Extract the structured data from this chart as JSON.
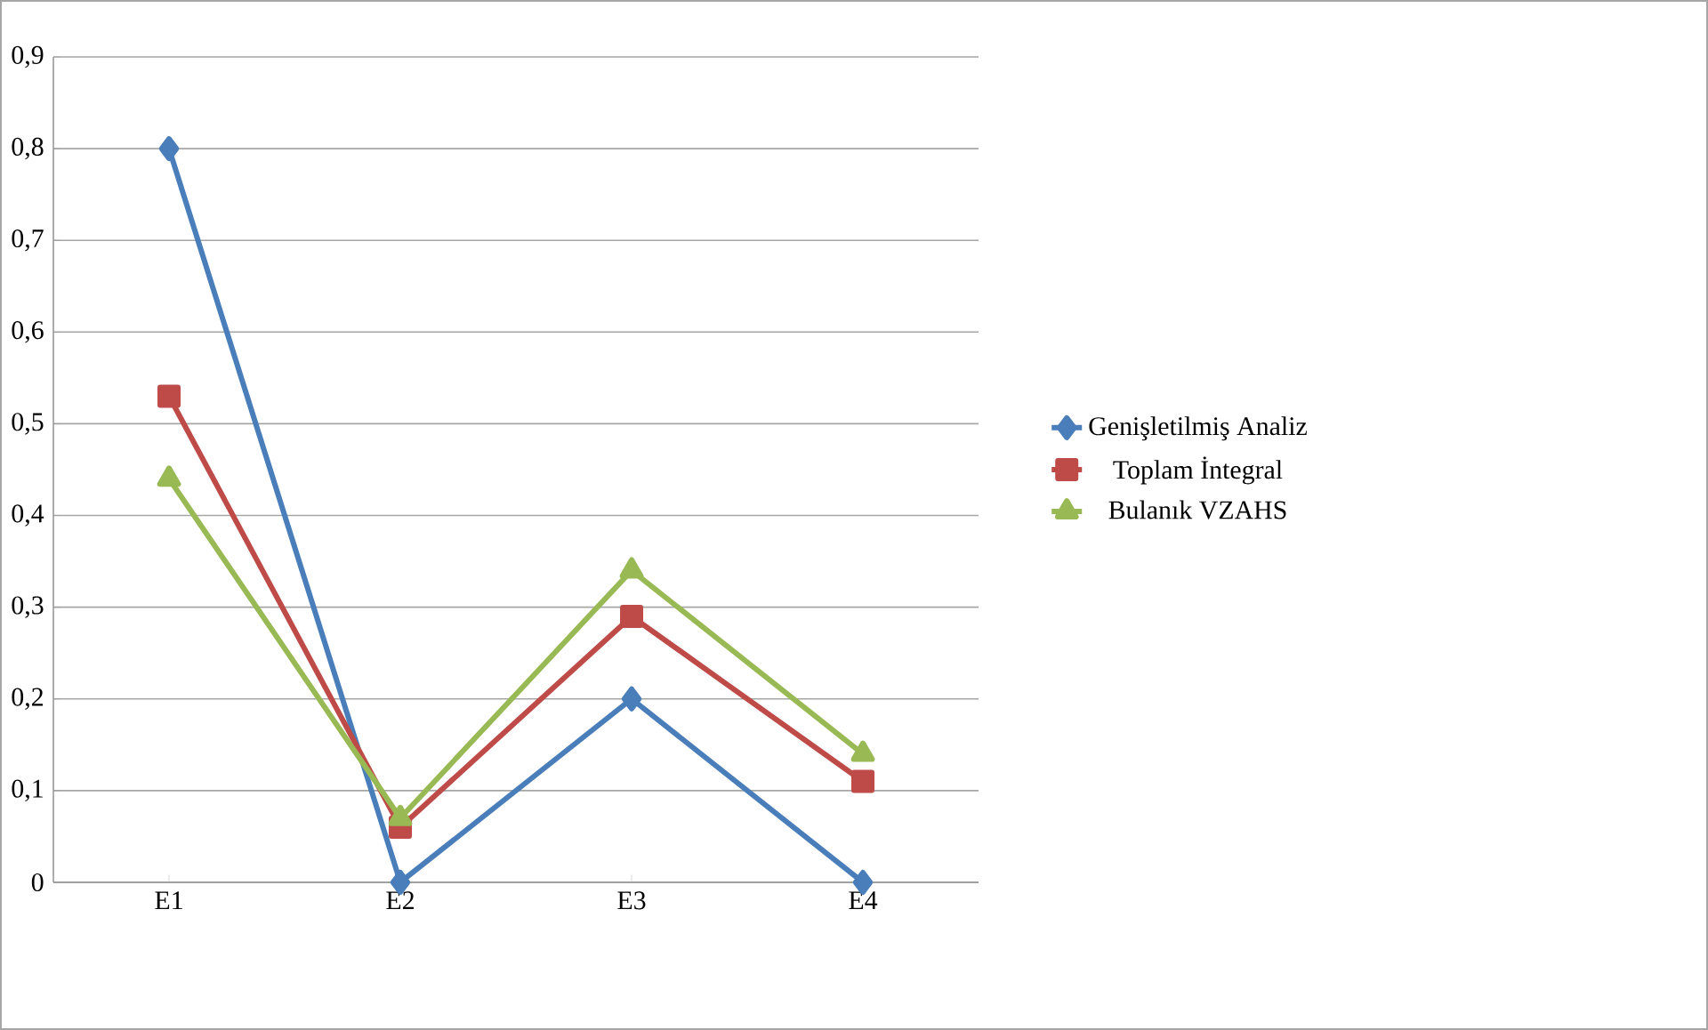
{
  "chart_data": {
    "type": "line",
    "categories": [
      "E1",
      "E2",
      "E3",
      "E4"
    ],
    "series": [
      {
        "name": "Genişletilmiş Analiz",
        "color": "#4a7ebb",
        "marker": "diamond",
        "values": [
          0.8,
          0,
          0.2,
          0
        ]
      },
      {
        "name": "Toplam İntegral",
        "color": "#be4b48",
        "marker": "square",
        "values": [
          0.53,
          0.06,
          0.29,
          0.11
        ]
      },
      {
        "name": "Bulanık VZAHS",
        "color": "#98b954",
        "marker": "triangle",
        "values": [
          0.44,
          0.07,
          0.34,
          0.14
        ]
      }
    ],
    "ylim": [
      0,
      0.9
    ],
    "yticks": [
      0,
      {
        "value": 0.1,
        "label": "0,1"
      },
      {
        "value": 0.2,
        "label": "0,2"
      },
      {
        "value": 0.3,
        "label": "0,3"
      },
      {
        "value": 0.4,
        "label": "0,4"
      },
      {
        "value": 0.5,
        "label": "0,5"
      },
      {
        "value": 0.6,
        "label": "0,6"
      },
      {
        "value": 0.7,
        "label": "0,7"
      },
      {
        "value": 0.8,
        "label": "0,8"
      },
      {
        "value": 0.9,
        "label": "0,9"
      }
    ],
    "grid": "y",
    "legend": "right",
    "line_style": "solid"
  }
}
